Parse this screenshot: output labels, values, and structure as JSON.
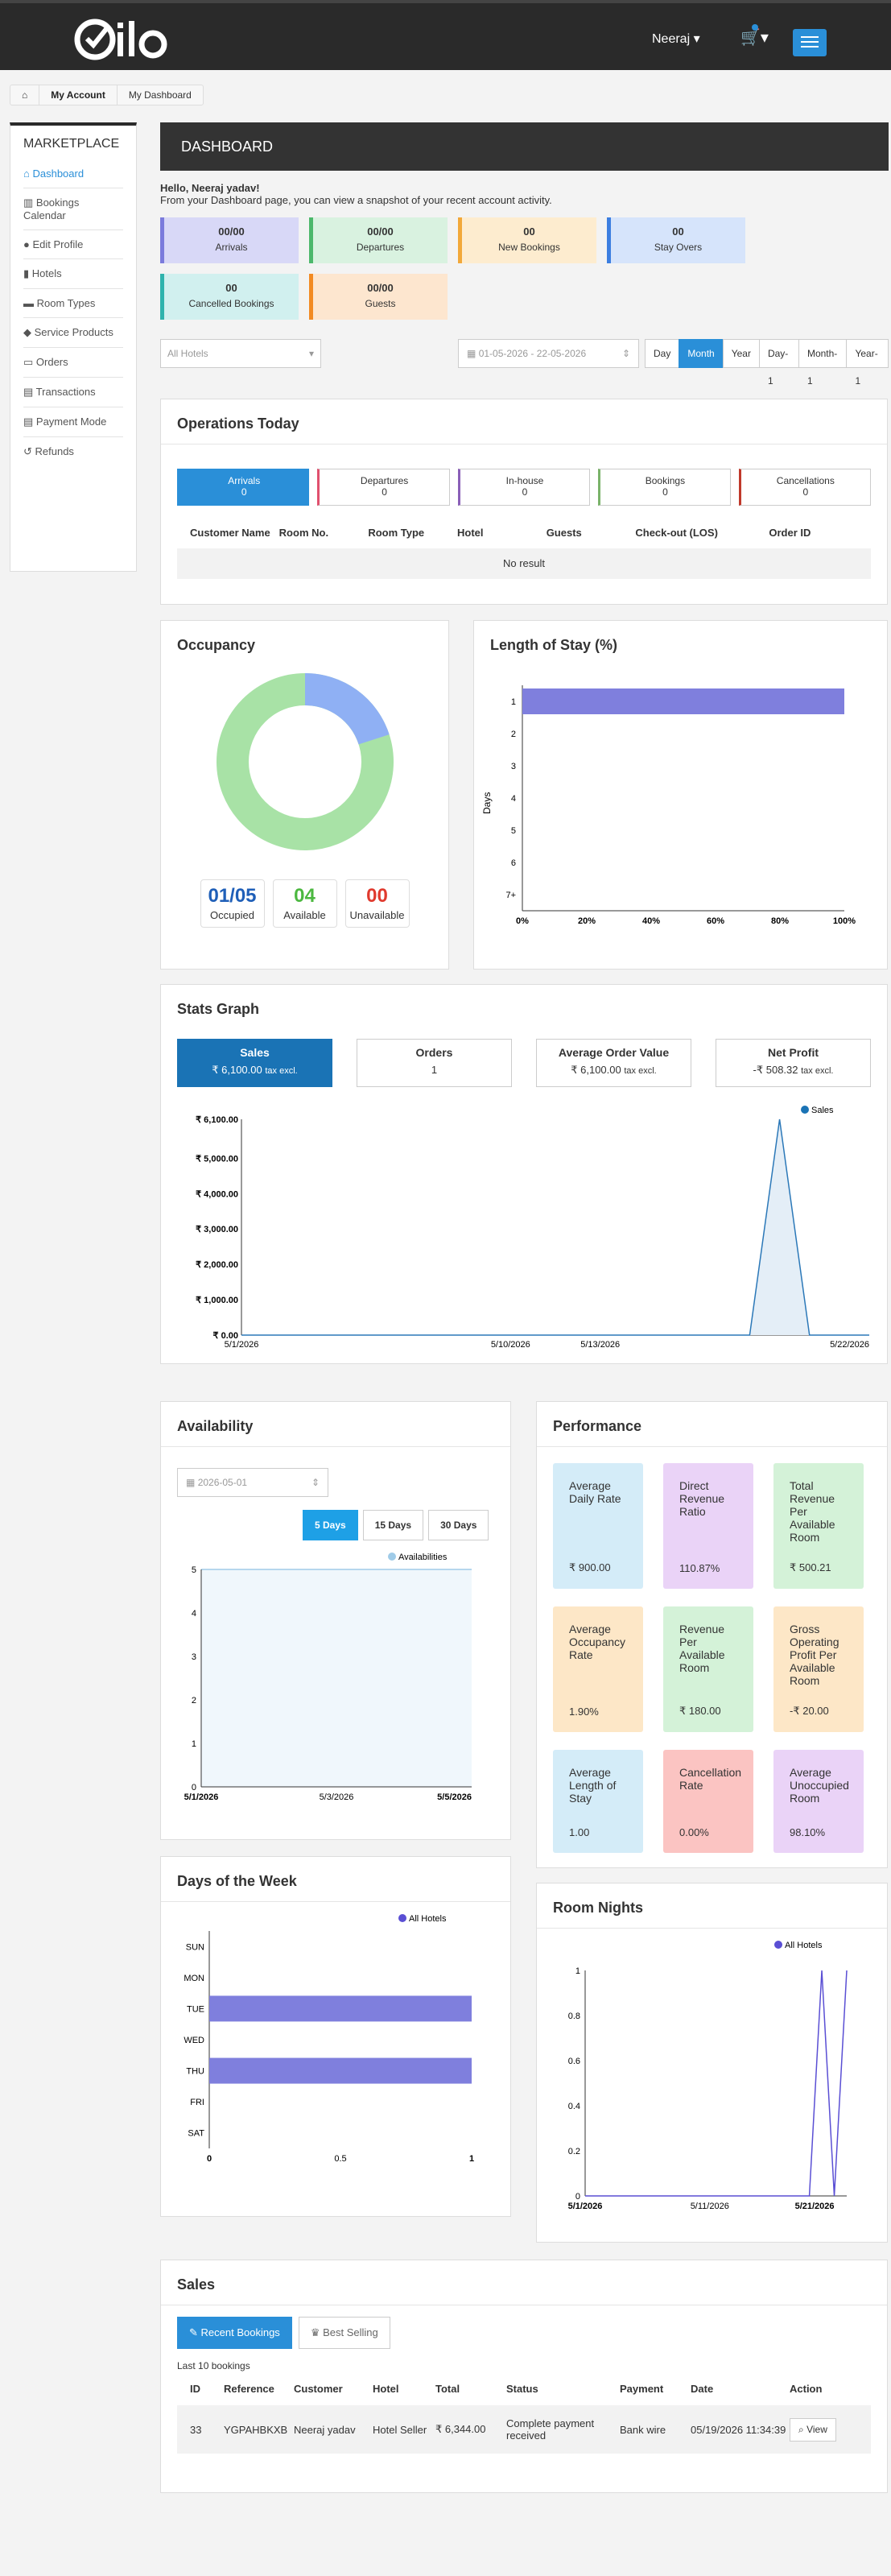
{
  "header": {
    "user": "Neeraj",
    "logo_text": "Qlo"
  },
  "breadcrumb": [
    "My Account",
    "My Dashboard"
  ],
  "sidebar": {
    "title": "MARKETPLACE",
    "items": [
      {
        "label": "Dashboard",
        "icon": "dashboard-icon"
      },
      {
        "label": "Bookings Calendar",
        "icon": "bar-chart-icon"
      },
      {
        "label": "Edit Profile",
        "icon": "user-icon"
      },
      {
        "label": "Hotels",
        "icon": "building-icon"
      },
      {
        "label": "Room Types",
        "icon": "bed-icon"
      },
      {
        "label": "Service Products",
        "icon": "cubes-icon"
      },
      {
        "label": "Orders",
        "icon": "credit-card-icon"
      },
      {
        "label": "Transactions",
        "icon": "money-icon"
      },
      {
        "label": "Payment Mode",
        "icon": "money-icon"
      },
      {
        "label": "Refunds",
        "icon": "undo-icon"
      }
    ]
  },
  "dashboard": {
    "title": "DASHBOARD",
    "hello": "Hello, Neeraj yadav!",
    "intro": "From your Dashboard page, you can view a snapshot of your recent account activity."
  },
  "stats": [
    {
      "value": "00/00",
      "label": "Arrivals",
      "bg": "#d8d8f7",
      "border": "#7b7bdc"
    },
    {
      "value": "00/00",
      "label": "Departures",
      "bg": "#d9f2e0",
      "border": "#4cb86b"
    },
    {
      "value": "00",
      "label": "New Bookings",
      "bg": "#fdeccf",
      "border": "#f2a83a"
    },
    {
      "value": "00",
      "label": "Stay Overs",
      "bg": "#d6e4fb",
      "border": "#3c7ee0"
    },
    {
      "value": "00",
      "label": "Cancelled Bookings",
      "bg": "#d1f0ef",
      "border": "#2fb3ad"
    },
    {
      "value": "00/00",
      "label": "Guests",
      "bg": "#fde6cf",
      "border": "#f28a22"
    }
  ],
  "filters": {
    "hotel": "All Hotels",
    "daterange": "01-05-2026 - 22-05-2026",
    "periods": [
      "Day",
      "Month",
      "Year",
      "Day-1",
      "Month-1",
      "Year-1"
    ],
    "active": "Month"
  },
  "operations": {
    "title": "Operations Today",
    "boxes": [
      {
        "label": "Arrivals",
        "value": "0",
        "color": "#2a8fd8"
      },
      {
        "label": "Departures",
        "value": "0",
        "color": "#e0506e"
      },
      {
        "label": "In-house",
        "value": "0",
        "color": "#8a5fb8"
      },
      {
        "label": "Bookings",
        "value": "0",
        "color": "#7ab36a"
      },
      {
        "label": "Cancellations",
        "value": "0",
        "color": "#c0392b"
      }
    ],
    "columns": [
      "Customer Name",
      "Room No.",
      "Room Type",
      "Hotel",
      "Guests",
      "Check-out (LOS)",
      "Order ID"
    ],
    "empty": "No result"
  },
  "occupancy": {
    "title": "Occupancy",
    "occupied": "01/05",
    "available": "04",
    "unavailable": "00",
    "labels": [
      "Occupied",
      "Available",
      "Unavailable"
    ],
    "occupied_fraction": 0.2
  },
  "los": {
    "title": "Length of Stay (%)",
    "categories": [
      "1",
      "2",
      "3",
      "4",
      "5",
      "6",
      "7+"
    ],
    "values": [
      100,
      0,
      0,
      0,
      0,
      0,
      0
    ],
    "xticks": [
      "0%",
      "20%",
      "40%",
      "60%",
      "80%",
      "100%"
    ],
    "ylabel": "Days"
  },
  "stats_graph": {
    "title": "Stats Graph",
    "boxes": [
      {
        "h": "Sales",
        "v": "₹ 6,100.00",
        "s": "tax excl."
      },
      {
        "h": "Orders",
        "v": "1",
        "s": ""
      },
      {
        "h": "Average Order Value",
        "v": "₹ 6,100.00",
        "s": "tax excl."
      },
      {
        "h": "Net Profit",
        "v": "-₹ 508.32",
        "s": "tax excl."
      }
    ]
  },
  "chart_data": [
    {
      "type": "area",
      "legend": [
        "Sales"
      ],
      "yticks": [
        "₹ 0.00",
        "₹ 1,000.00",
        "₹ 2,000.00",
        "₹ 3,000.00",
        "₹ 4,000.00",
        "₹ 5,000.00",
        "₹ 6,100.00"
      ],
      "xticks": [
        "5/1/2026",
        "5/10/2026",
        "5/13/2026",
        "5/22/2026"
      ],
      "x": [
        1,
        2,
        3,
        4,
        5,
        6,
        7,
        8,
        9,
        10,
        11,
        12,
        13,
        14,
        15,
        16,
        17,
        18,
        19,
        20,
        21,
        22
      ],
      "series": [
        {
          "name": "Sales",
          "values": [
            0,
            0,
            0,
            0,
            0,
            0,
            0,
            0,
            0,
            0,
            0,
            0,
            0,
            0,
            0,
            0,
            0,
            0,
            6100,
            0,
            0,
            0
          ]
        }
      ],
      "ylim": [
        0,
        6100
      ]
    },
    {
      "type": "area",
      "legend": [
        "Availabilities"
      ],
      "yticks": [
        "0",
        "1",
        "2",
        "3",
        "4",
        "5"
      ],
      "xticks": [
        "5/1/2026",
        "5/3/2026",
        "5/5/2026"
      ],
      "series": [
        {
          "name": "Availabilities",
          "values": [
            5,
            5,
            5,
            5,
            5
          ]
        }
      ],
      "ylim": [
        0,
        5
      ]
    },
    {
      "type": "bar",
      "legend": [
        "All Hotels"
      ],
      "categories": [
        "SUN",
        "MON",
        "TUE",
        "WED",
        "THU",
        "FRI",
        "SAT"
      ],
      "values": [
        0,
        0,
        1,
        0,
        1,
        0,
        0
      ],
      "xticks": [
        "0",
        "0.5",
        "1"
      ]
    },
    {
      "type": "line",
      "legend": [
        "All Hotels"
      ],
      "yticks": [
        "0",
        "0.2",
        "0.4",
        "0.6",
        "0.8",
        "1"
      ],
      "xticks": [
        "5/1/2026",
        "5/11/2026",
        "5/21/2026"
      ],
      "series": [
        {
          "name": "All Hotels",
          "values": [
            0,
            0,
            0,
            0,
            0,
            0,
            0,
            0,
            0,
            0,
            0,
            0,
            0,
            0,
            0,
            0,
            0,
            0,
            0,
            1,
            0,
            1
          ]
        }
      ],
      "ylim": [
        0,
        1
      ]
    }
  ],
  "availability": {
    "title": "Availability",
    "date": "2026-05-01",
    "buttons": [
      "5 Days",
      "15 Days",
      "30 Days"
    ]
  },
  "performance": {
    "title": "Performance",
    "cards": [
      {
        "label": "Average Daily Rate",
        "value": "₹ 900.00",
        "bg": "#d4ecf8"
      },
      {
        "label": "Direct Revenue Ratio",
        "value": "110.87%",
        "bg": "#ead3f7"
      },
      {
        "label": "Total Revenue Per Available Room",
        "value": "₹ 500.21",
        "bg": "#d4f2d8"
      },
      {
        "label": "Average Occupancy Rate",
        "value": "1.90%",
        "bg": "#fde7c7"
      },
      {
        "label": "Revenue Per Available Room",
        "value": "₹ 180.00",
        "bg": "#d4f2d8"
      },
      {
        "label": "Gross Operating Profit Per Available Room",
        "value": "-₹ 20.00",
        "bg": "#fde7c7"
      },
      {
        "label": "Average Length of Stay",
        "value": "1.00",
        "bg": "#d4ecf8"
      },
      {
        "label": "Cancellation Rate",
        "value": "0.00%",
        "bg": "#fbc4c2"
      },
      {
        "label": "Average Unoccupied Room",
        "value": "98.10%",
        "bg": "#ead3f7"
      }
    ]
  },
  "days_week": {
    "title": "Days of the Week"
  },
  "room_nights": {
    "title": "Room Nights"
  },
  "sales": {
    "title": "Sales",
    "tabs": [
      "Recent Bookings",
      "Best Selling"
    ],
    "sub": "Last 10 bookings",
    "columns": [
      "ID",
      "Reference",
      "Customer",
      "Hotel",
      "Total",
      "Status",
      "Payment",
      "Date",
      "Action"
    ],
    "row": {
      "id": "33",
      "ref": "YGPAHBKXB",
      "customer": "Neeraj yadav",
      "hotel": "Hotel Seller",
      "total": "₹ 6,344.00",
      "status": "Complete payment received",
      "payment": "Bank wire",
      "date": "05/19/2026 11:34:39",
      "action": "View"
    }
  }
}
